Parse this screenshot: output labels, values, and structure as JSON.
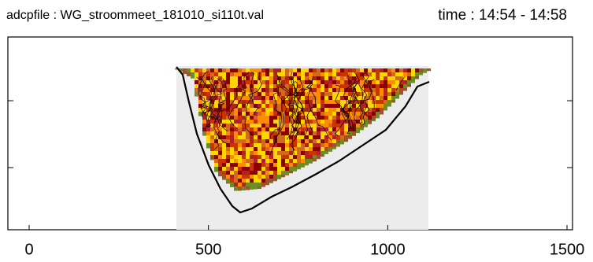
{
  "chart_data": {
    "type": "section",
    "title": "adcpfile : WG_stroommeet_181010_si110t.val",
    "subtitle": "time : 14:54 - 14:58",
    "xlim": [
      0,
      1500
    ],
    "xticks": [
      0,
      500,
      1000,
      1500
    ]
  }
}
